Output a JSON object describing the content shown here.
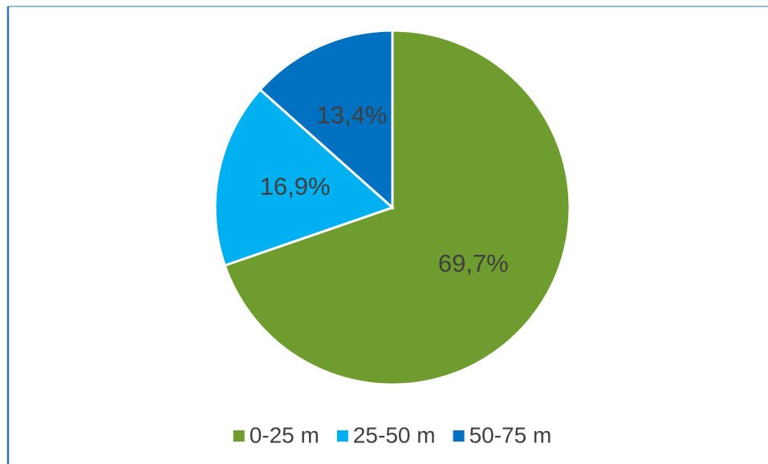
{
  "chart_data": {
    "type": "pie",
    "categories": [
      "0-25 m",
      "25-50 m",
      "50-75 m"
    ],
    "values": [
      69.7,
      16.9,
      13.4
    ],
    "value_labels": [
      "69,7%",
      "16,9%",
      "13,4%"
    ],
    "colors": [
      "#6f9c2e",
      "#00b0f0",
      "#0070c0"
    ],
    "legend": "bottom"
  }
}
